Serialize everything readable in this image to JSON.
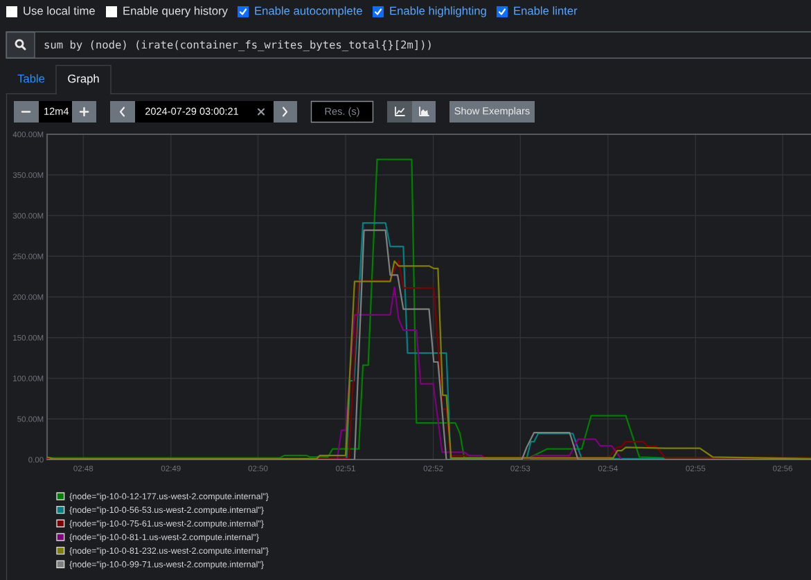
{
  "chart_data": {
    "type": "line",
    "title": "sum by (node) (irate(container_fs_writes_bytes_total{}[2m]))",
    "annotations": [
      "Use local time",
      "Enable query history",
      "Enable autocomplete",
      "Enable highlighting",
      "Enable linter",
      "Table",
      "Graph",
      "12m4",
      "2024-07-29 03:00:21",
      "Res. (s)",
      "Show Exemplars"
    ],
    "xlim": [
      2.7931,
      2.9387
    ],
    "xticks": [
      {
        "value": 2.8,
        "label": "02:48"
      },
      {
        "value": 2.8167,
        "label": "02:49"
      },
      {
        "value": 2.8333,
        "label": "02:50"
      },
      {
        "value": 2.85,
        "label": "02:51"
      },
      {
        "value": 2.8667,
        "label": "02:52"
      },
      {
        "value": 2.8833,
        "label": "02:53"
      },
      {
        "value": 2.9,
        "label": "02:54"
      },
      {
        "value": 2.9167,
        "label": "02:55"
      },
      {
        "value": 2.9333,
        "label": "02:56"
      }
    ],
    "ylim": [
      0,
      400
    ],
    "yticks": [
      {
        "value": 0,
        "label": "0.00"
      },
      {
        "value": 50,
        "label": "50.00M"
      },
      {
        "value": 100,
        "label": "100.00M"
      },
      {
        "value": 150,
        "label": "150.00M"
      },
      {
        "value": 200,
        "label": "200.00M"
      },
      {
        "value": 250,
        "label": "250.00M"
      },
      {
        "value": 300,
        "label": "300.00M"
      },
      {
        "value": 350,
        "label": "350.00M"
      },
      {
        "value": 400,
        "label": "400.00M"
      }
    ],
    "grid": true,
    "legend": "bottom",
    "marker": "none",
    "line_style": "solid",
    "series": [
      {
        "name": "{node=\"ip-10-0-12-177.us-west-2.compute.internal\"}",
        "color": "#008000",
        "x": [
          2.7931,
          2.8374,
          2.8383,
          2.8426,
          2.8432,
          2.8445,
          2.8449,
          2.8466,
          2.8475,
          2.8525,
          2.8533,
          2.8543,
          2.856,
          2.8626,
          2.8635,
          2.8709,
          2.8718,
          2.8726,
          2.8849,
          2.8884,
          2.895,
          2.8968,
          2.9034,
          2.906,
          2.9109,
          2.9387
        ],
        "values": [
          2,
          2,
          5,
          5,
          3,
          3,
          4,
          3,
          13,
          13,
          116,
          116,
          369,
          369,
          45,
          45,
          32,
          2,
          2,
          13,
          13,
          54,
          54,
          3,
          2,
          2
        ]
      },
      {
        "name": "{node=\"ip-10-0-56-53.us-west-2.compute.internal\"}",
        "color": "#008080",
        "x": [
          2.7931,
          2.8502,
          2.8508,
          2.8516,
          2.8533,
          2.8576,
          2.8585,
          2.861,
          2.8618,
          2.8692,
          2.87,
          2.8845,
          2.8853,
          2.8859,
          2.8867,
          2.8933,
          2.895,
          2.9387
        ],
        "values": [
          1,
          1,
          97,
          97,
          291,
          291,
          262,
          262,
          131,
          131,
          1,
          1,
          22,
          22,
          32,
          32,
          1,
          1
        ]
      },
      {
        "name": "{node=\"ip-10-0-75-61.us-west-2.compute.internal\"}",
        "color": "#800000",
        "x": [
          2.7931,
          2.8506,
          2.8525,
          2.8585,
          2.8601,
          2.861,
          2.8668,
          2.8685,
          2.8692,
          2.87,
          2.8759,
          2.8766,
          2.9001,
          2.9017,
          2.9026,
          2.9034,
          2.9067,
          2.9076,
          2.9092,
          2.9109,
          2.9387
        ],
        "values": [
          1,
          1,
          220,
          220,
          245,
          211,
          211,
          62,
          62,
          5,
          5,
          2,
          2,
          15,
          16,
          22,
          22,
          16,
          16,
          2,
          2
        ]
      },
      {
        "name": "{node=\"ip-10-0-81-1.us-west-2.compute.internal\"}",
        "color": "#800080",
        "x": [
          2.7931,
          2.8484,
          2.8492,
          2.85,
          2.8517,
          2.8585,
          2.8593,
          2.8601,
          2.861,
          2.8635,
          2.8643,
          2.8667,
          2.8684,
          2.8726,
          2.8735,
          2.8759,
          2.8764,
          2.8848,
          2.8861,
          2.8927,
          2.8943,
          2.8976,
          2.8985,
          2.9007,
          2.9026,
          2.9387
        ],
        "values": [
          0,
          0,
          36,
          36,
          178,
          178,
          212,
          173,
          159,
          159,
          93,
          93,
          9,
          9,
          5,
          5,
          0,
          0,
          5,
          5,
          25,
          25,
          17,
          17,
          0,
          0
        ]
      },
      {
        "name": "{node=\"ip-10-0-81-232.us-west-2.compute.internal\"}",
        "color": "#808000",
        "x": [
          2.7931,
          2.7943,
          2.8445,
          2.8451,
          2.85,
          2.8517,
          2.8585,
          2.8593,
          2.8601,
          2.8659,
          2.8668,
          2.8676,
          2.8685,
          2.8692,
          2.8701,
          2.901,
          2.9018,
          2.9026,
          2.9034,
          2.9109,
          2.9175,
          2.92,
          2.9387
        ],
        "values": [
          3,
          1,
          1,
          5,
          5,
          219,
          219,
          244,
          238,
          238,
          235,
          235,
          79,
          79,
          2,
          2,
          11,
          11,
          15,
          14,
          14,
          3,
          1
        ]
      },
      {
        "name": "{node=\"ip-10-0-99-71.us-west-2.compute.internal\"}",
        "color": "#808080",
        "x": [
          2.7931,
          2.8517,
          2.8535,
          2.8576,
          2.8585,
          2.8599,
          2.861,
          2.8659,
          2.8668,
          2.8676,
          2.8692,
          2.8836,
          2.8845,
          2.8859,
          2.8927,
          2.8943,
          2.9387
        ],
        "values": [
          0,
          0,
          282,
          282,
          227,
          227,
          185,
          185,
          120,
          120,
          0,
          0,
          15,
          33,
          33,
          0,
          0
        ]
      }
    ]
  }
}
